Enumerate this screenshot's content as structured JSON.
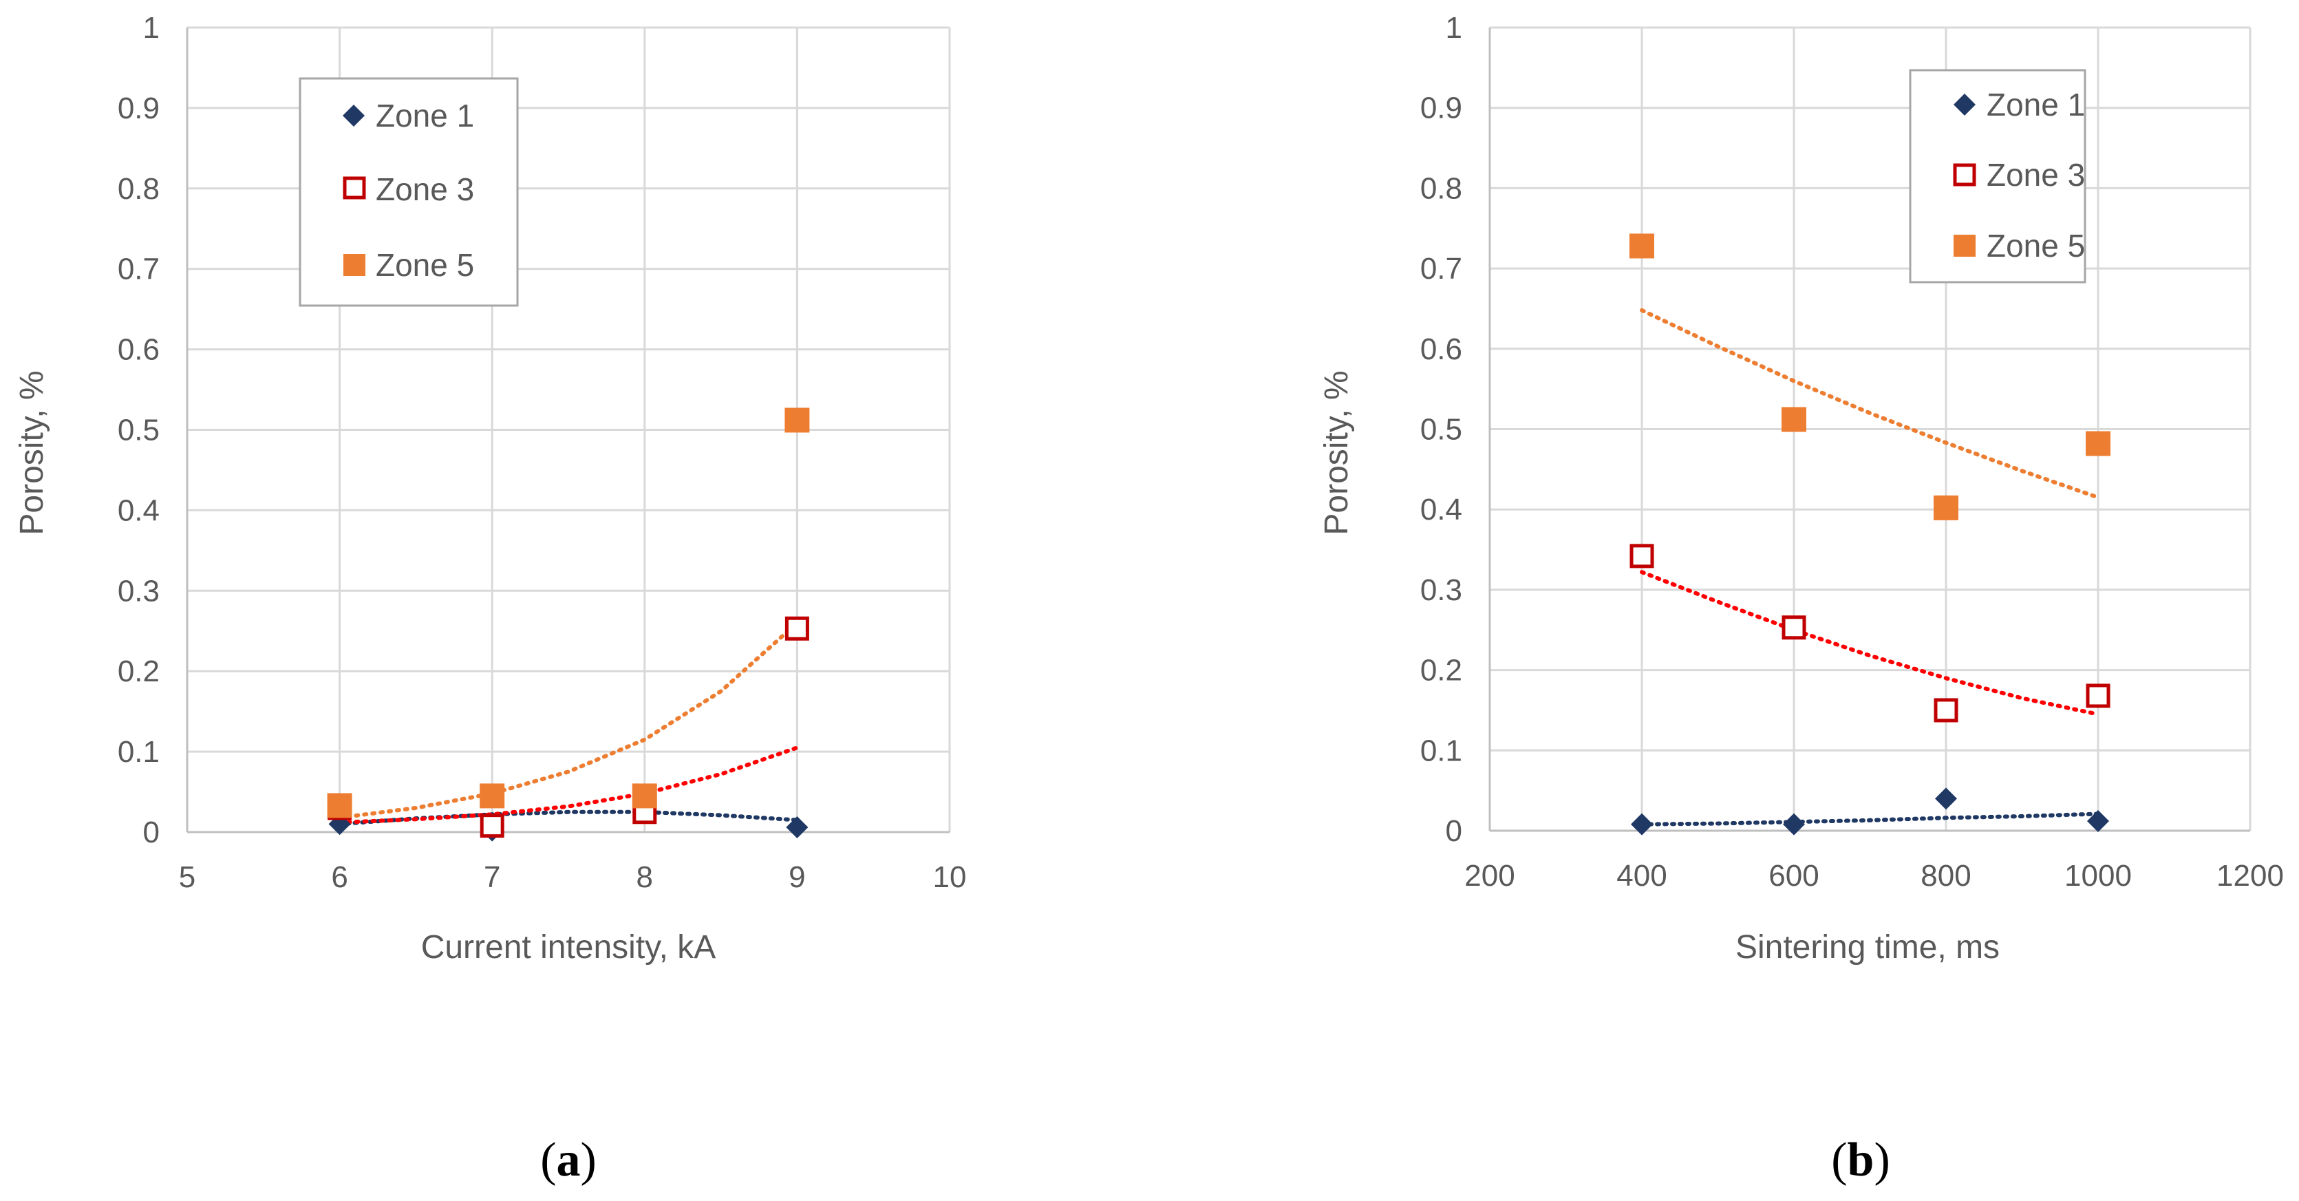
{
  "colors": {
    "zone1": "#1F3864",
    "zone3": "#C00000",
    "zone3_trend": "#FF0000",
    "zone5": "#ED7D31",
    "grid": "#D9D9D9",
    "axis": "#BFBFBF",
    "text": "#595959"
  },
  "chart_data": [
    {
      "id": "a",
      "type": "scatter",
      "panel_label": "a",
      "xlabel": "Current intensity, kA",
      "ylabel": "Porosity, %",
      "xlim": [
        5,
        10
      ],
      "ylim": [
        0,
        1
      ],
      "xticks": [
        5,
        6,
        7,
        8,
        9,
        10
      ],
      "yticks": [
        0,
        0.1,
        0.2,
        0.3,
        0.4,
        0.5,
        0.6,
        0.7,
        0.8,
        0.9,
        1
      ],
      "ytick_labels": [
        "0",
        "0.1",
        "0.2",
        "0.3",
        "0.4",
        "0.5",
        "0.6",
        "0.7",
        "0.8",
        "0.9",
        "1"
      ],
      "legend": {
        "placement": "top-left"
      },
      "series": [
        {
          "name": "Zone 1",
          "marker": "diamond",
          "x": [
            6,
            7,
            8,
            9
          ],
          "y": [
            0.01,
            0.002,
            0.03,
            0.006
          ],
          "trend": {
            "x": [
              6,
              6.5,
              7,
              7.5,
              8,
              8.5,
              9
            ],
            "y": [
              0.01,
              0.017,
              0.022,
              0.025,
              0.025,
              0.021,
              0.015
            ]
          }
        },
        {
          "name": "Zone 3",
          "marker": "square-open",
          "x": [
            6,
            7,
            8,
            9
          ],
          "y": [
            0.03,
            0.008,
            0.025,
            0.253
          ],
          "trend": {
            "x": [
              6,
              6.5,
              7,
              7.5,
              8,
              8.5,
              9
            ],
            "y": [
              0.012,
              0.016,
              0.022,
              0.032,
              0.048,
              0.072,
              0.105
            ]
          }
        },
        {
          "name": "Zone 5",
          "marker": "square",
          "x": [
            6,
            7,
            8,
            9
          ],
          "y": [
            0.033,
            0.045,
            0.045,
            0.512
          ],
          "trend": {
            "x": [
              6,
              6.5,
              7,
              7.5,
              8,
              8.5,
              9
            ],
            "y": [
              0.018,
              0.03,
              0.048,
              0.075,
              0.115,
              0.175,
              0.26
            ]
          }
        }
      ]
    },
    {
      "id": "b",
      "type": "scatter",
      "panel_label": "b",
      "xlabel": "Sintering time, ms",
      "ylabel": "Porosity, %",
      "xlim": [
        200,
        1200
      ],
      "ylim": [
        0,
        1
      ],
      "xticks": [
        200,
        400,
        600,
        800,
        1000,
        1200
      ],
      "yticks": [
        0,
        0.1,
        0.2,
        0.3,
        0.4,
        0.5,
        0.6,
        0.7,
        0.8,
        0.9,
        1
      ],
      "ytick_labels": [
        "0",
        "0.1",
        "0.2",
        "0.3",
        "0.4",
        "0.5",
        "0.6",
        "0.7",
        "0.8",
        "0.9",
        "1"
      ],
      "legend": {
        "placement": "top-right"
      },
      "series": [
        {
          "name": "Zone 1",
          "marker": "diamond",
          "x": [
            400,
            600,
            800,
            1000
          ],
          "y": [
            0.008,
            0.008,
            0.04,
            0.012
          ],
          "trend": {
            "x": [
              400,
              500,
              600,
              700,
              800,
              900,
              1000
            ],
            "y": [
              0.008,
              0.009,
              0.011,
              0.013,
              0.016,
              0.018,
              0.021
            ]
          }
        },
        {
          "name": "Zone 3",
          "marker": "square-open",
          "x": [
            400,
            600,
            800,
            1000
          ],
          "y": [
            0.342,
            0.253,
            0.15,
            0.168
          ],
          "trend": {
            "x": [
              400,
              500,
              600,
              700,
              800,
              900,
              1000
            ],
            "y": [
              0.322,
              0.285,
              0.25,
              0.218,
              0.19,
              0.165,
              0.145
            ]
          }
        },
        {
          "name": "Zone 5",
          "marker": "square",
          "x": [
            400,
            600,
            800,
            1000
          ],
          "y": [
            0.728,
            0.512,
            0.402,
            0.482
          ],
          "trend": {
            "x": [
              400,
              500,
              600,
              700,
              800,
              900,
              1000
            ],
            "y": [
              0.648,
              0.603,
              0.56,
              0.52,
              0.483,
              0.448,
              0.415
            ]
          }
        }
      ]
    }
  ]
}
